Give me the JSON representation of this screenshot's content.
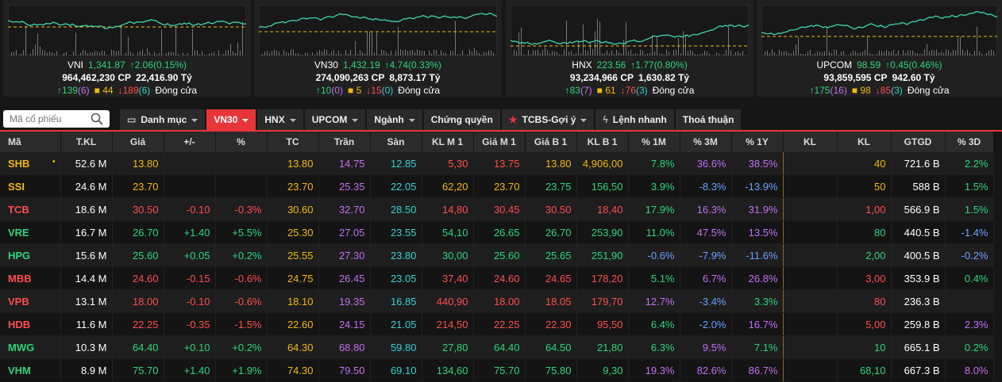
{
  "indices": [
    {
      "name": "VNI",
      "value": "1,341.87",
      "change": "2.06",
      "pct": "(0.15%)",
      "volume": "964,462,230",
      "vol_unit": "CP",
      "valuet": "22,416.90",
      "val_unit": "Tỷ",
      "up": "139",
      "up_c": "(6)",
      "ref": "44",
      "down": "189",
      "down_c": "(6)",
      "status": "Đóng cửa",
      "color": "#2ed47a"
    },
    {
      "name": "VN30",
      "value": "1,432.19",
      "change": "4.74",
      "pct": "(0.33%)",
      "volume": "274,090,263",
      "vol_unit": "CP",
      "valuet": "8,873.17",
      "val_unit": "Tỷ",
      "up": "10",
      "up_c": "(0)",
      "ref": "5",
      "down": "15",
      "down_c": "(0)",
      "status": "Đóng cửa",
      "color": "#2ed47a"
    },
    {
      "name": "HNX",
      "value": "223.56",
      "change": "1.77",
      "pct": "(0.80%)",
      "volume": "93,234,966",
      "vol_unit": "CP",
      "valuet": "1,630.82",
      "val_unit": "Tỷ",
      "up": "83",
      "up_c": "(7)",
      "ref": "61",
      "down": "76",
      "down_c": "(3)",
      "status": "Đóng cửa",
      "color": "#2ed47a"
    },
    {
      "name": "UPCOM",
      "value": "98.59",
      "change": "0.45",
      "pct": "(0.46%)",
      "volume": "93,859,595",
      "vol_unit": "CP",
      "valuet": "942.60",
      "val_unit": "Tỷ",
      "up": "175",
      "up_c": "(16)",
      "ref": "98",
      "down": "85",
      "down_c": "(3)",
      "status": "Đóng cửa",
      "color": "#2ed47a"
    }
  ],
  "search": {
    "placeholder": "Mã cổ phiếu"
  },
  "tabs": [
    "Danh mục",
    "VN30",
    "HNX",
    "UPCOM",
    "Ngành",
    "Chứng quyền",
    "TCBS-Gợi ý",
    "Lệnh nhanh",
    "Thoả thuận"
  ],
  "headers": [
    "Mã",
    "T.KL",
    "Giá",
    "+/-",
    "%",
    "TC",
    "Trần",
    "Sàn",
    "KL M 1",
    "Giá M 1",
    "Giá B 1",
    "KL B 1",
    "% 1M",
    "% 3M",
    "% 1Y",
    "KL",
    "KL",
    "GTGD",
    "% 3D"
  ],
  "colors": {
    "up": "#2ed47a",
    "down": "#ff4d4d",
    "ref": "#f0b90b",
    "ceil": "#c070f0",
    "floor": "#34d1d1",
    "accent": "#e8353a"
  },
  "rows": [
    {
      "sym": "SHB",
      "tkl": "52.6 M",
      "gia": "13.80",
      "chg": "",
      "pct": "",
      "tc": "13.80",
      "tran": "14.75",
      "san": "12.85",
      "klm1": "5,30",
      "giam1": "13.75",
      "giab1": "13.80",
      "klb1": "4,906,00",
      "m1": "7.8%",
      "m3": "36.6%",
      "y1": "38.5%",
      "kl1": "",
      "kl2": "40",
      "gtgd": "721.6 B",
      "d3": "2.2%",
      "c": "y",
      "cm1": "r",
      "cm1g": "r",
      "cb1": "y",
      "cklb1": "y",
      "c1m": "g",
      "c3m": "p",
      "c1y": "p",
      "ckl2": "y",
      "c3d": "g"
    },
    {
      "sym": "SSI",
      "tkl": "24.6 M",
      "gia": "23.70",
      "chg": "",
      "pct": "",
      "tc": "23.70",
      "tran": "25.35",
      "san": "22.05",
      "klm1": "62,20",
      "giam1": "23.70",
      "giab1": "23.75",
      "klb1": "156,50",
      "m1": "3.9%",
      "m3": "-8.3%",
      "y1": "-13.9%",
      "kl1": "",
      "kl2": "50",
      "gtgd": "588 B",
      "d3": "1.5%",
      "c": "y",
      "cm1": "y",
      "cm1g": "y",
      "cb1": "g",
      "cklb1": "g",
      "c1m": "g",
      "c3m": "b",
      "c1y": "b",
      "ckl2": "y",
      "c3d": "g"
    },
    {
      "sym": "TCB",
      "tkl": "18.6 M",
      "gia": "30.50",
      "chg": "-0.10",
      "pct": "-0.3%",
      "tc": "30.60",
      "tran": "32.70",
      "san": "28.50",
      "klm1": "14,80",
      "giam1": "30.45",
      "giab1": "30.50",
      "klb1": "18,40",
      "m1": "17.9%",
      "m3": "16.3%",
      "y1": "31.9%",
      "kl1": "",
      "kl2": "1,00",
      "gtgd": "566.9 B",
      "d3": "1.5%",
      "c": "r",
      "cm1": "r",
      "cm1g": "r",
      "cb1": "r",
      "cklb1": "r",
      "c1m": "g",
      "c3m": "p",
      "c1y": "p",
      "ckl2": "r",
      "c3d": "g"
    },
    {
      "sym": "VRE",
      "tkl": "16.7 M",
      "gia": "26.70",
      "chg": "+1.40",
      "pct": "+5.5%",
      "tc": "25.30",
      "tran": "27.05",
      "san": "23.55",
      "klm1": "54,10",
      "giam1": "26.65",
      "giab1": "26.70",
      "klb1": "253,90",
      "m1": "11.0%",
      "m3": "47.5%",
      "y1": "13.5%",
      "kl1": "",
      "kl2": "80",
      "gtgd": "440.5 B",
      "d3": "-1.4%",
      "c": "g",
      "cm1": "g",
      "cm1g": "g",
      "cb1": "g",
      "cklb1": "g",
      "c1m": "g",
      "c3m": "p",
      "c1y": "p",
      "ckl2": "g",
      "c3d": "b"
    },
    {
      "sym": "HPG",
      "tkl": "15.6 M",
      "gia": "25.60",
      "chg": "+0.05",
      "pct": "+0.2%",
      "tc": "25.55",
      "tran": "27.30",
      "san": "23.80",
      "klm1": "30,00",
      "giam1": "25.60",
      "giab1": "25.65",
      "klb1": "251,90",
      "m1": "-0.6%",
      "m3": "-7.9%",
      "y1": "-11.6%",
      "kl1": "",
      "kl2": "2,00",
      "gtgd": "400.5 B",
      "d3": "-0.2%",
      "c": "g",
      "cm1": "g",
      "cm1g": "g",
      "cb1": "g",
      "cklb1": "g",
      "c1m": "b",
      "c3m": "b",
      "c1y": "b",
      "ckl2": "g",
      "c3d": "b"
    },
    {
      "sym": "MBB",
      "tkl": "14.4 M",
      "gia": "24.60",
      "chg": "-0.15",
      "pct": "-0.6%",
      "tc": "24.75",
      "tran": "26.45",
      "san": "23.05",
      "klm1": "37,40",
      "giam1": "24.60",
      "giab1": "24.65",
      "klb1": "178,20",
      "m1": "5.1%",
      "m3": "6.7%",
      "y1": "26.8%",
      "kl1": "",
      "kl2": "3,00",
      "gtgd": "353.9 B",
      "d3": "0.4%",
      "c": "r",
      "cm1": "r",
      "cm1g": "r",
      "cb1": "r",
      "cklb1": "r",
      "c1m": "g",
      "c3m": "p",
      "c1y": "p",
      "ckl2": "r",
      "c3d": "g"
    },
    {
      "sym": "VPB",
      "tkl": "13.1 M",
      "gia": "18.00",
      "chg": "-0.10",
      "pct": "-0.6%",
      "tc": "18.10",
      "tran": "19.35",
      "san": "16.85",
      "klm1": "440,90",
      "giam1": "18.00",
      "giab1": "18.05",
      "klb1": "179,70",
      "m1": "12.7%",
      "m3": "-3.4%",
      "y1": "3.3%",
      "kl1": "",
      "kl2": "80",
      "gtgd": "236.3 B",
      "d3": "",
      "c": "r",
      "cm1": "r",
      "cm1g": "r",
      "cb1": "r",
      "cklb1": "r",
      "c1m": "p",
      "c3m": "b",
      "c1y": "g",
      "ckl2": "r",
      "c3d": "g"
    },
    {
      "sym": "HDB",
      "tkl": "11.6 M",
      "gia": "22.25",
      "chg": "-0.35",
      "pct": "-1.5%",
      "tc": "22.60",
      "tran": "24.15",
      "san": "21.05",
      "klm1": "214,50",
      "giam1": "22.25",
      "giab1": "22.30",
      "klb1": "95,50",
      "m1": "6.4%",
      "m3": "-2.0%",
      "y1": "16.7%",
      "kl1": "",
      "kl2": "5,00",
      "gtgd": "259.8 B",
      "d3": "2.3%",
      "c": "r",
      "cm1": "r",
      "cm1g": "r",
      "cb1": "r",
      "cklb1": "r",
      "c1m": "g",
      "c3m": "b",
      "c1y": "p",
      "ckl2": "r",
      "c3d": "p"
    },
    {
      "sym": "MWG",
      "tkl": "10.3 M",
      "gia": "64.40",
      "chg": "+0.10",
      "pct": "+0.2%",
      "tc": "64.30",
      "tran": "68.80",
      "san": "59.80",
      "klm1": "27,80",
      "giam1": "64.40",
      "giab1": "64.50",
      "klb1": "21,80",
      "m1": "6.3%",
      "m3": "9.5%",
      "y1": "7.1%",
      "kl1": "",
      "kl2": "10",
      "gtgd": "665.1 B",
      "d3": "0.2%",
      "c": "g",
      "cm1": "g",
      "cm1g": "g",
      "cb1": "g",
      "cklb1": "g",
      "c1m": "g",
      "c3m": "p",
      "c1y": "g",
      "ckl2": "g",
      "c3d": "g"
    },
    {
      "sym": "VHM",
      "tkl": "8.9 M",
      "gia": "75.70",
      "chg": "+1.40",
      "pct": "+1.9%",
      "tc": "74.30",
      "tran": "79.50",
      "san": "69.10",
      "klm1": "134,60",
      "giam1": "75.70",
      "giab1": "75.80",
      "klb1": "9,30",
      "m1": "19.3%",
      "m3": "82.6%",
      "y1": "86.7%",
      "kl1": "",
      "kl2": "68,10",
      "gtgd": "667.3 B",
      "d3": "8.0%",
      "c": "g",
      "cm1": "g",
      "cm1g": "g",
      "cb1": "g",
      "cklb1": "g",
      "c1m": "p",
      "c3m": "p",
      "c1y": "p",
      "ckl2": "g",
      "c3d": "p"
    }
  ]
}
